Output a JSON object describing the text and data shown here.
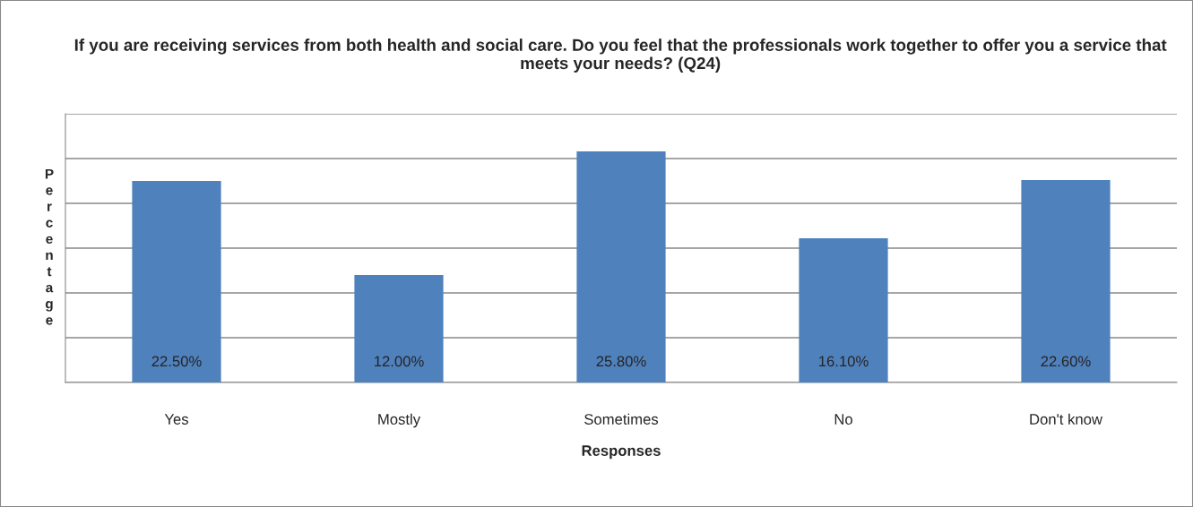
{
  "chart_data": {
    "type": "bar",
    "title": "If you are receiving services from both health and social care. Do you feel that the professionals work together to offer you a service that meets your needs? (Q24)",
    "xlabel": "Responses",
    "ylabel": "Percentage",
    "categories": [
      "Yes",
      "Mostly",
      "Sometimes",
      "No",
      "Don't know"
    ],
    "values": [
      22.5,
      12.0,
      25.8,
      16.1,
      22.6
    ],
    "value_labels": [
      "22.50%",
      "12.00%",
      "25.80%",
      "16.10%",
      "22.60%"
    ],
    "color": "#4f81bd",
    "ylim": [
      0,
      30
    ],
    "yticks": [
      {
        "value": 0,
        "label": null
      },
      {
        "value": 5,
        "label": null
      },
      {
        "value": 10,
        "label": null
      },
      {
        "value": 15,
        "label": null
      },
      {
        "value": 20,
        "label": null
      },
      {
        "value": 25,
        "label": null
      },
      {
        "value": 30,
        "label": null
      }
    ],
    "grid": "y"
  }
}
